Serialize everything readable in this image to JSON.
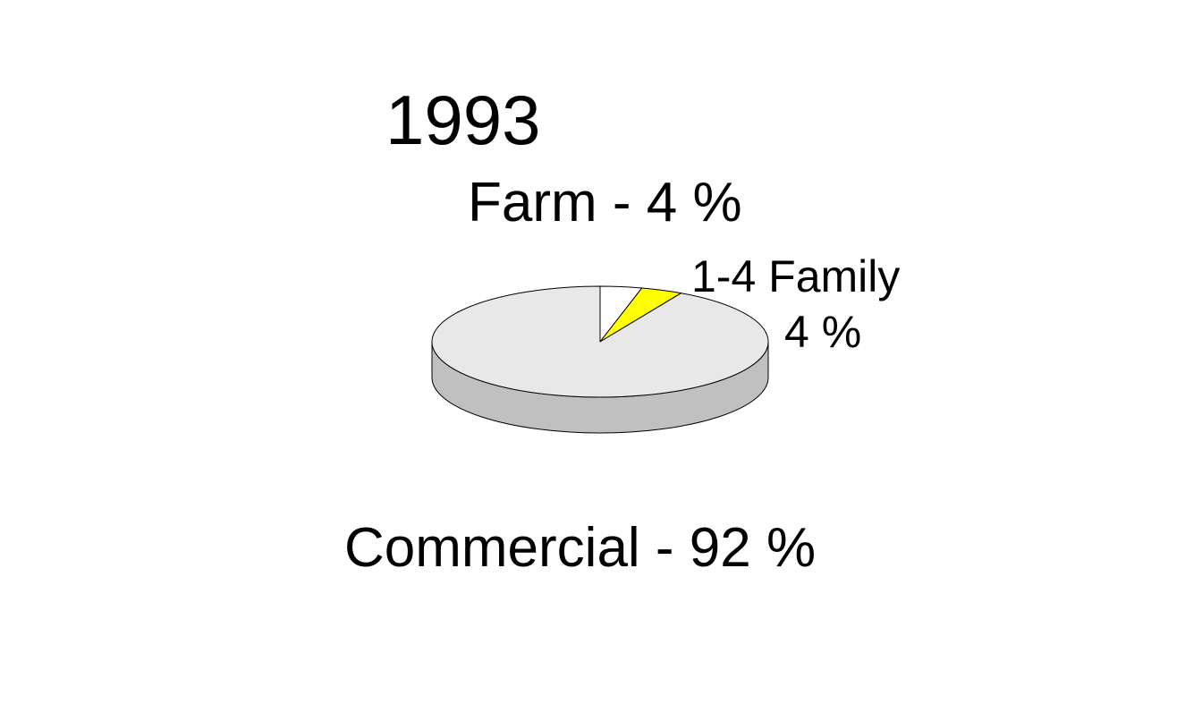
{
  "chart_data": {
    "type": "pie",
    "title": "1993",
    "slices": [
      {
        "name": "Farm",
        "value": 4,
        "color": "#ffffff",
        "label": "Farm - 4 %"
      },
      {
        "name": "1-4 Family",
        "value": 4,
        "color": "#ffff00",
        "label_name": "1-4 Family",
        "label_value": "4 %"
      },
      {
        "name": "Commercial",
        "value": 92,
        "color": "#e8e8e8",
        "label": "Commercial - 92 %"
      }
    ],
    "side_color": "#c0c0c0",
    "style": "3d"
  }
}
